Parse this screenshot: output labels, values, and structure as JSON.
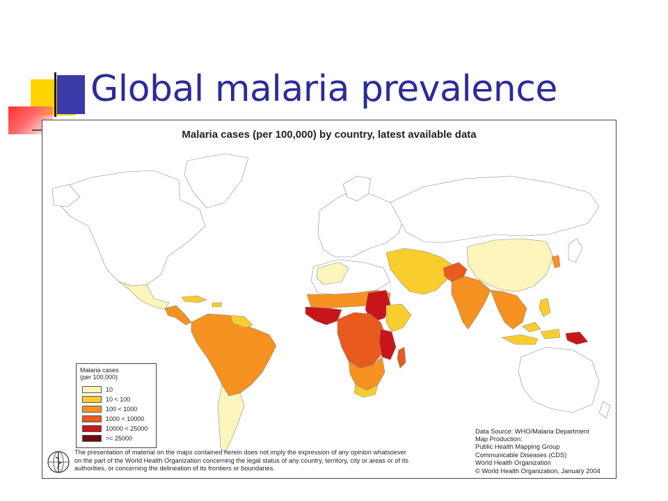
{
  "slide": {
    "title": "Global malaria prevalence"
  },
  "map": {
    "title": "Malaria cases (per 100,000) by country, latest available data",
    "legend": {
      "title_line1": "Malaria cases",
      "title_line2": "(per 100,000)",
      "items": [
        {
          "label": "10",
          "color": "#fef5bc"
        },
        {
          "label": "10 < 100",
          "color": "#f9cd2e"
        },
        {
          "label": "100 < 1000",
          "color": "#f59221"
        },
        {
          "label": "1000 < 10000",
          "color": "#e85a1e"
        },
        {
          "label": "10000 < 25000",
          "color": "#c8151a"
        },
        {
          "label": ">= 25000",
          "color": "#6e0c10"
        }
      ]
    },
    "disclaimer": [
      "The presentation of material on the maps contained herein does not imply the expression of any opinion whatsoever",
      "on the part of the World Health Organization concerning the legal status of any country, territory, city or areas or of its",
      "authorities, or concerning the delineation of its frontiers or boundaries."
    ],
    "credits": [
      "Data Source: WHO/Malaria Department",
      "Map Production:",
      "Public Health Mapping Group",
      "Communicable Diseases (CDS)",
      "World Health Organization"
    ],
    "copyright": "© World Health Organization, January 2004"
  },
  "colors": {
    "title_text": "#2b2b9a",
    "deco_yellow": "#ffd700",
    "deco_blue": "#3333aa",
    "deco_red": "#ff3333",
    "no_data": "#ffffff"
  }
}
